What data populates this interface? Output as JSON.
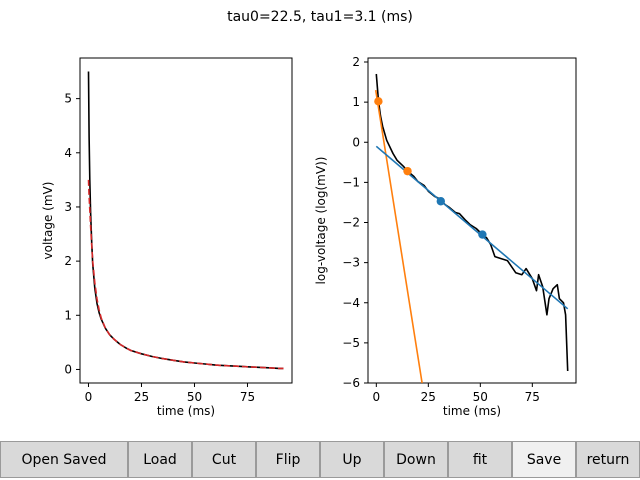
{
  "figure": {
    "suptitle": "tau0=22.5, tau1=3.1 (ms)"
  },
  "chart_data": [
    {
      "type": "line",
      "xlabel": "time (ms)",
      "ylabel": "voltage (mV)",
      "xlim": [
        -4,
        96
      ],
      "ylim": [
        -0.25,
        5.75
      ],
      "xticks": [
        0,
        25,
        50,
        75
      ],
      "yticks": [
        0,
        1,
        2,
        3,
        4,
        5
      ],
      "grid": false,
      "series": [
        {
          "style": "solid",
          "color": "#000000",
          "x": [
            0,
            0.3,
            0.6,
            1,
            1.5,
            2,
            3,
            4,
            5,
            6,
            8,
            10,
            12,
            15,
            18,
            20,
            25,
            30,
            35,
            40,
            45,
            50,
            55,
            60,
            65,
            70,
            75,
            80,
            85,
            90,
            92
          ],
          "y": [
            5.5,
            4.3,
            3.5,
            2.9,
            2.35,
            1.95,
            1.5,
            1.22,
            1.05,
            0.93,
            0.76,
            0.64,
            0.56,
            0.46,
            0.39,
            0.35,
            0.29,
            0.24,
            0.2,
            0.17,
            0.14,
            0.12,
            0.1,
            0.08,
            0.07,
            0.06,
            0.05,
            0.04,
            0.03,
            0.02,
            0.02
          ]
        },
        {
          "style": "dashed",
          "color": "#d62728",
          "x": [
            0,
            0.3,
            0.6,
            1,
            1.5,
            2,
            3,
            4,
            5,
            6,
            8,
            10,
            12,
            15,
            18,
            20,
            25,
            30,
            35,
            40,
            45,
            50,
            55,
            60,
            65,
            70,
            75,
            80,
            85,
            90,
            92
          ],
          "y": [
            3.5,
            3.2,
            2.95,
            2.65,
            2.3,
            2.0,
            1.6,
            1.3,
            1.1,
            0.95,
            0.76,
            0.64,
            0.56,
            0.46,
            0.39,
            0.35,
            0.29,
            0.24,
            0.2,
            0.17,
            0.14,
            0.12,
            0.1,
            0.08,
            0.07,
            0.06,
            0.05,
            0.04,
            0.03,
            0.02,
            0.02
          ]
        }
      ]
    },
    {
      "type": "line",
      "xlabel": "time (ms)",
      "ylabel": "log-voltage (log(mV))",
      "xlim": [
        -4,
        96
      ],
      "ylim": [
        -6,
        2.1
      ],
      "xticks": [
        0,
        25,
        50,
        75
      ],
      "yticks": [
        2,
        1,
        0,
        -1,
        -2,
        -3,
        -4,
        -5,
        -6
      ],
      "ytick_labels": [
        "2",
        "1",
        "0",
        "−1",
        "−2",
        "−3",
        "−4",
        "−5",
        "−6"
      ],
      "grid": false,
      "series": [
        {
          "style": "solid",
          "color": "#000000",
          "x": [
            0,
            1,
            2,
            3,
            5,
            8,
            10,
            13,
            15,
            18,
            20,
            23,
            25,
            28,
            30,
            33,
            35,
            38,
            40,
            43,
            45,
            48,
            50,
            53,
            55,
            57,
            60,
            63,
            65,
            67,
            70,
            72,
            75,
            77,
            78,
            80,
            82,
            83,
            85,
            87,
            88,
            90,
            91,
            92
          ],
          "y": [
            1.7,
            1.05,
            0.66,
            0.4,
            0.05,
            -0.28,
            -0.45,
            -0.6,
            -0.72,
            -0.85,
            -0.98,
            -1.08,
            -1.22,
            -1.35,
            -1.4,
            -1.55,
            -1.62,
            -1.75,
            -1.78,
            -1.95,
            -2.05,
            -2.15,
            -2.25,
            -2.38,
            -2.55,
            -2.85,
            -2.9,
            -2.95,
            -3.1,
            -3.25,
            -3.3,
            -3.15,
            -3.4,
            -3.7,
            -3.3,
            -3.6,
            -4.3,
            -3.9,
            -3.65,
            -3.55,
            -3.9,
            -4.0,
            -4.3,
            -5.7
          ]
        },
        {
          "style": "solid",
          "color": "#ff7f0e",
          "x": [
            -0.3,
            22
          ],
          "y": [
            1.3,
            -6.0
          ]
        },
        {
          "style": "solid",
          "color": "#1f77b4",
          "x": [
            0,
            92
          ],
          "y": [
            -0.1,
            -4.15
          ]
        }
      ],
      "points": [
        {
          "color": "#ff7f0e",
          "x": 1,
          "y": 1.02
        },
        {
          "color": "#ff7f0e",
          "x": 15,
          "y": -0.72
        },
        {
          "color": "#1f77b4",
          "x": 31,
          "y": -1.47
        },
        {
          "color": "#1f77b4",
          "x": 51,
          "y": -2.3
        }
      ]
    }
  ],
  "toolbar": {
    "open_saved": "Open Saved",
    "load": "Load",
    "cut": "Cut",
    "flip": "Flip",
    "up": "Up",
    "down": "Down",
    "fit": "fit",
    "save": "Save",
    "return": "return"
  }
}
